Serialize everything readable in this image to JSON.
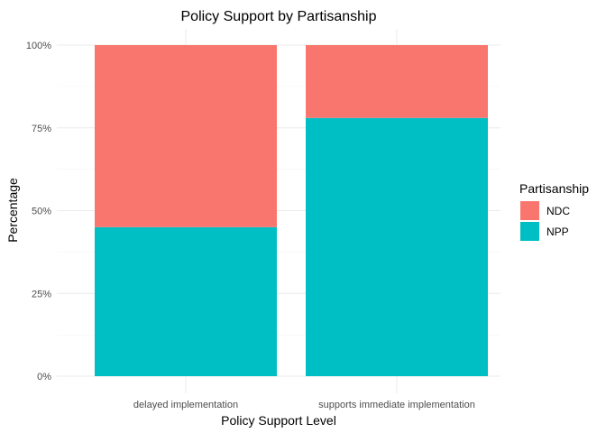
{
  "chart_data": {
    "type": "bar",
    "stacked": true,
    "title": "Policy Support by Partisanship",
    "xlabel": "Policy Support Level",
    "ylabel": "Percentage",
    "categories": [
      "delayed implementation",
      "supports immediate implementation"
    ],
    "series": [
      {
        "name": "NPP",
        "values": [
          45,
          78
        ],
        "color": "#00BFC4"
      },
      {
        "name": "NDC",
        "values": [
          55,
          22
        ],
        "color": "#F8766D"
      }
    ],
    "y_ticks": [
      {
        "value": 0,
        "label": "0%"
      },
      {
        "value": 25,
        "label": "25%"
      },
      {
        "value": 50,
        "label": "50%"
      },
      {
        "value": 75,
        "label": "75%"
      },
      {
        "value": 100,
        "label": "100%"
      }
    ],
    "ylim": [
      0,
      100
    ],
    "grid": true,
    "legend": {
      "title": "Partisanship",
      "position": "right",
      "entries": [
        {
          "name": "NDC",
          "color": "#F8766D"
        },
        {
          "name": "NPP",
          "color": "#00BFC4"
        }
      ]
    }
  }
}
